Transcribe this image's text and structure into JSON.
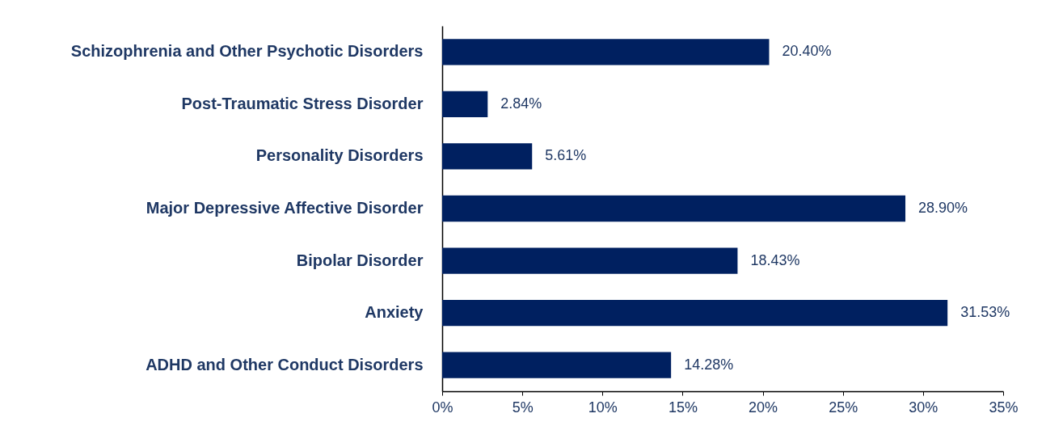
{
  "chart_data": {
    "type": "bar",
    "orientation": "horizontal",
    "categories": [
      "Schizophrenia and Other Psychotic Disorders",
      "Post-Traumatic Stress Disorder",
      "Personality Disorders",
      "Major Depressive Affective Disorder",
      "Bipolar Disorder",
      "Anxiety",
      "ADHD and Other Conduct Disorders"
    ],
    "values": [
      20.4,
      2.84,
      5.61,
      28.9,
      18.43,
      31.53,
      14.28
    ],
    "value_labels": [
      "20.40%",
      "2.84%",
      "5.61%",
      "28.90%",
      "18.43%",
      "31.53%",
      "14.28%"
    ],
    "color": "#002060",
    "xlim": [
      0,
      35
    ],
    "xticks": [
      {
        "value": 0,
        "label": "0%"
      },
      {
        "value": 5,
        "label": "5%"
      },
      {
        "value": 10,
        "label": "10%"
      },
      {
        "value": 15,
        "label": "15%"
      },
      {
        "value": 20,
        "label": "20%"
      },
      {
        "value": 25,
        "label": "25%"
      },
      {
        "value": 30,
        "label": "30%"
      },
      {
        "value": 35,
        "label": "35%"
      }
    ],
    "grid": false
  }
}
